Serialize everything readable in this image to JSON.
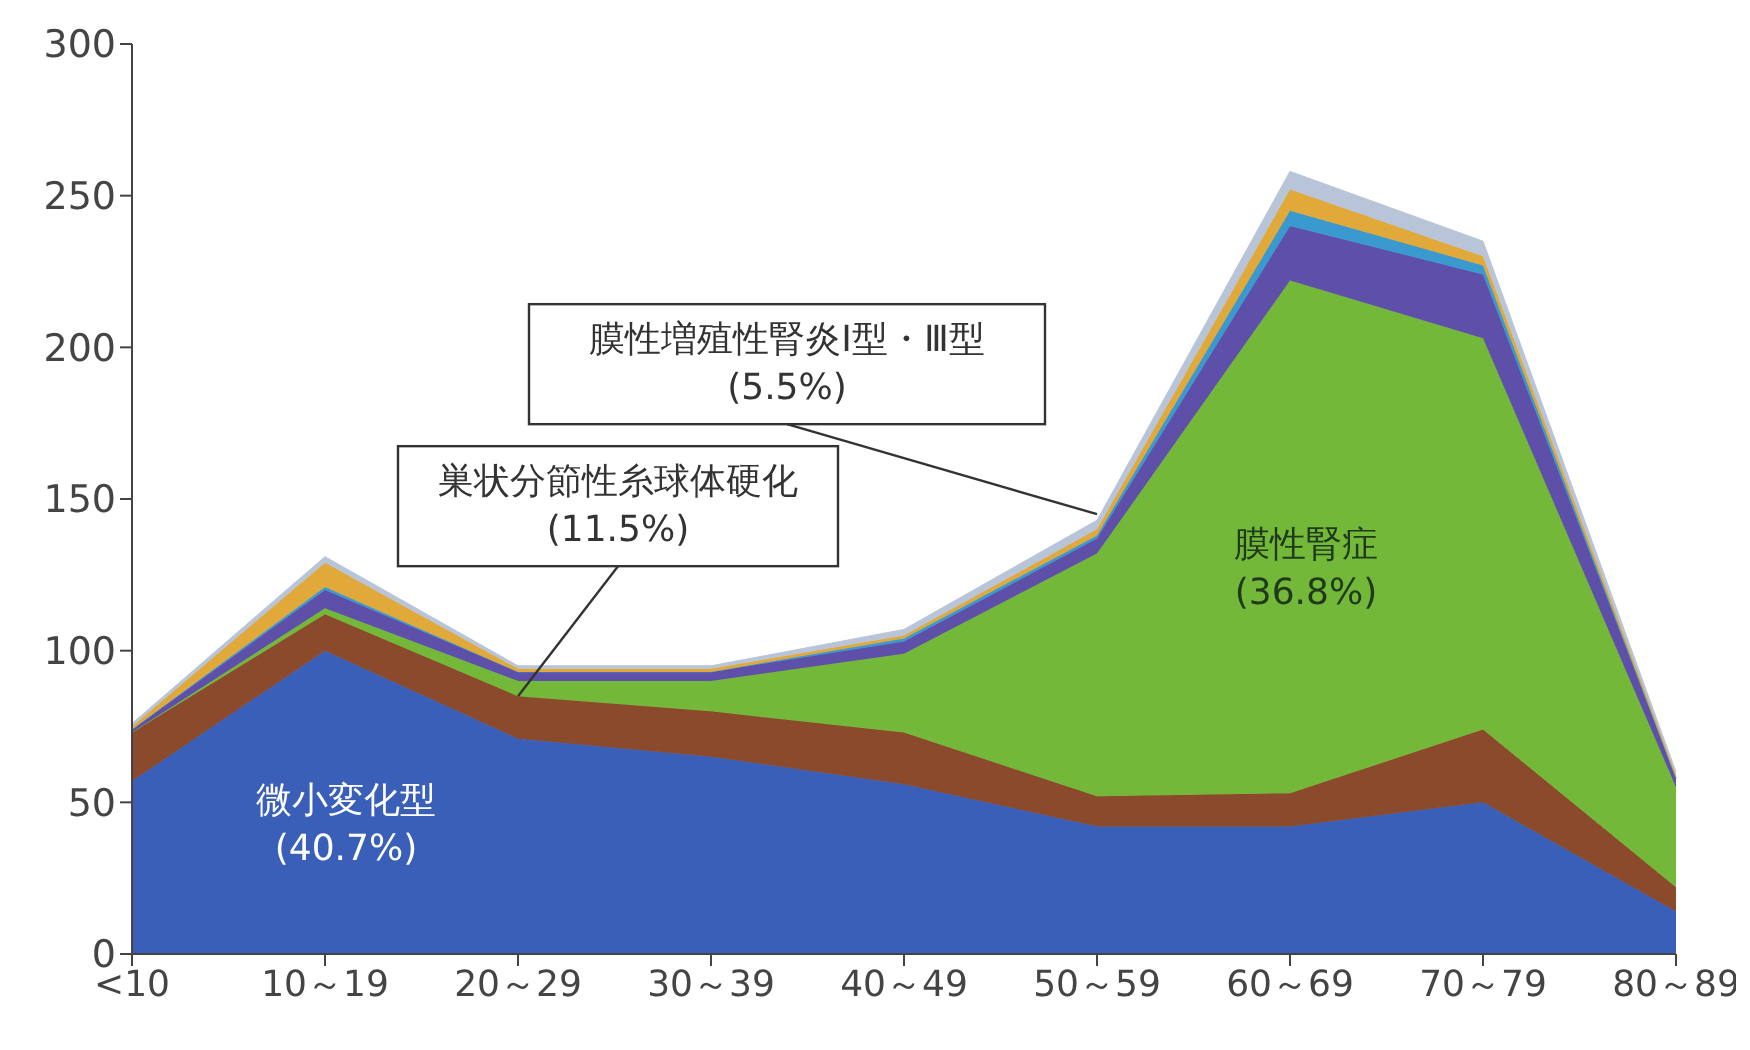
{
  "chart_data": {
    "type": "area",
    "stacked": true,
    "categories": [
      "<10",
      "10～19",
      "20～29",
      "30～39",
      "40～49",
      "50～59",
      "60～69",
      "70～79",
      "80～89"
    ],
    "series": [
      {
        "color": "#3a5fb8",
        "values": [
          57,
          100,
          71,
          65,
          56,
          42,
          42,
          50,
          14
        ]
      },
      {
        "color": "#8b4a2b",
        "values": [
          16,
          12,
          14,
          15,
          17,
          10,
          11,
          24,
          8
        ]
      },
      {
        "color": "#74b83a",
        "values": [
          0,
          2,
          5,
          10,
          26,
          80,
          169,
          129,
          33
        ]
      },
      {
        "color": "#5e4fa8",
        "values": [
          1,
          6,
          3,
          3,
          4,
          5,
          18,
          21,
          3
        ]
      },
      {
        "color": "#3a9ad0",
        "values": [
          0,
          1,
          0,
          0,
          1,
          1,
          5,
          3,
          0
        ]
      },
      {
        "color": "#e0a93a",
        "values": [
          1,
          8,
          1,
          1,
          1,
          2,
          7,
          3,
          1
        ]
      },
      {
        "color": "#b8c4d8",
        "values": [
          1,
          2,
          1,
          1,
          2,
          3,
          6,
          5,
          1
        ]
      }
    ],
    "ylim": [
      0,
      300
    ],
    "yticks": [
      0,
      50,
      100,
      150,
      200,
      250,
      300
    ],
    "grid": false,
    "annotations": [
      "微小変化型\n(40.7%)",
      {
        "text": "巣状分節性糸球体硬化\n(11.5%)",
        "x": "20～29",
        "y": 85
      },
      {
        "text": "膜性増殖性腎炎Ⅰ型・Ⅲ型\n(5.5%)",
        "x": "50～59",
        "y": 145
      },
      "膜性腎症\n(36.8%)"
    ]
  }
}
